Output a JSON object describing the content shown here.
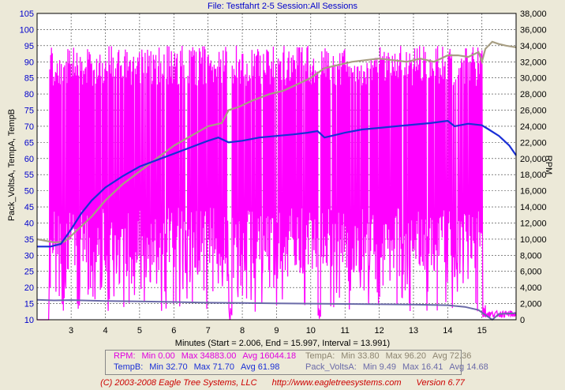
{
  "header": {
    "title": "File: Testfahrt 2-5   Session:All Sessions"
  },
  "colors": {
    "rpm": "#ff00ff",
    "temp_a": "#a89f84",
    "temp_b": "#1a2fd6",
    "pack_volts": "#6a6aa8",
    "plot_bg": "#ffffff",
    "grid": "#3a3a3a"
  },
  "chart_data": {
    "type": "line",
    "xlabel": "Minutes (Start = 2.006, End = 15.997, Interval = 13.991)",
    "ylabel": "Pack_VoltsA, TempA, TempB",
    "y2label": "RPM",
    "xlim": [
      2.006,
      15.997
    ],
    "ylim": [
      10,
      105
    ],
    "y2lim": [
      0,
      38000
    ],
    "x_ticks": [
      "3",
      "4",
      "5",
      "6",
      "7",
      "8",
      "9",
      "10",
      "11",
      "12",
      "13",
      "14",
      "15"
    ],
    "y_ticks": [
      "10",
      "15",
      "20",
      "25",
      "30",
      "35",
      "40",
      "45",
      "50",
      "55",
      "60",
      "65",
      "70",
      "75",
      "80",
      "85",
      "90",
      "95",
      "100",
      "105"
    ],
    "y2_ticks": [
      "0",
      "2,000",
      "4,000",
      "6,000",
      "8,000",
      "10,000",
      "12,000",
      "14,000",
      "16,000",
      "18,000",
      "20,000",
      "22,000",
      "24,000",
      "26,000",
      "28,000",
      "30,000",
      "32,000",
      "34,000",
      "36,000",
      "38,000"
    ],
    "grid": true,
    "series": [
      {
        "name": "TempA",
        "axis": "left",
        "x": [
          2.0,
          2.5,
          2.8,
          3.0,
          3.3,
          3.6,
          4.0,
          4.5,
          5.0,
          5.5,
          6.0,
          6.5,
          7.0,
          7.4,
          7.6,
          7.9,
          8.3,
          8.8,
          9.2,
          9.6,
          10.0,
          10.4,
          10.8,
          11.2,
          11.6,
          12.0,
          12.4,
          12.8,
          13.2,
          13.6,
          14.0,
          14.3,
          14.6,
          14.9,
          15.0,
          15.1,
          15.3,
          15.5,
          15.7,
          15.997
        ],
        "y": [
          35.0,
          34.0,
          34.2,
          36.0,
          39.0,
          42.0,
          47.0,
          52.0,
          56.0,
          60.0,
          64.0,
          67.0,
          70.0,
          71.0,
          75.0,
          76.0,
          78.0,
          80.0,
          81.0,
          83.0,
          85.0,
          88.0,
          89.0,
          90.0,
          90.5,
          91.0,
          90.5,
          90.0,
          91.0,
          90.0,
          92.0,
          92.0,
          91.5,
          93.0,
          90.0,
          94.0,
          96.2,
          95.5,
          95.0,
          94.5
        ]
      },
      {
        "name": "TempB",
        "axis": "left",
        "x": [
          2.0,
          2.4,
          2.7,
          3.0,
          3.3,
          3.6,
          4.0,
          4.5,
          5.0,
          5.5,
          6.0,
          6.5,
          7.0,
          7.3,
          7.6,
          8.0,
          8.5,
          9.0,
          9.5,
          9.9,
          10.2,
          10.4,
          10.6,
          11.0,
          11.5,
          12.0,
          12.5,
          13.0,
          13.5,
          14.0,
          14.2,
          14.6,
          15.0,
          15.2,
          15.5,
          15.8,
          15.997
        ],
        "y": [
          32.7,
          32.7,
          33.5,
          38.0,
          43.0,
          47.0,
          51.0,
          54.5,
          57.5,
          59.5,
          61.5,
          63.5,
          65.5,
          66.5,
          65.0,
          65.5,
          66.5,
          67.0,
          67.5,
          68.0,
          68.5,
          66.5,
          67.0,
          68.0,
          69.0,
          69.5,
          70.0,
          70.5,
          71.0,
          71.7,
          70.0,
          70.8,
          70.3,
          69.0,
          67.0,
          64.0,
          61.0
        ]
      },
      {
        "name": "Pack_VoltsA",
        "axis": "left",
        "x": [
          2.0,
          2.5,
          3.0,
          4.0,
          5.0,
          6.0,
          7.0,
          8.0,
          9.0,
          10.0,
          11.0,
          12.0,
          13.0,
          14.0,
          14.5,
          14.9,
          15.1,
          15.3,
          15.5,
          15.997
        ],
        "y": [
          16.2,
          16.0,
          16.1,
          15.8,
          15.7,
          15.5,
          15.3,
          15.2,
          15.1,
          15.0,
          14.9,
          14.8,
          14.7,
          14.5,
          14.0,
          13.0,
          11.5,
          10.0,
          11.8,
          12.0
        ]
      },
      {
        "name": "RPM",
        "axis": "right",
        "x": [],
        "y": []
      }
    ]
  },
  "legend": {
    "rpm": {
      "label": "RPM:",
      "min": "Min 0.00",
      "max": "Max 34883.00",
      "avg": "Avg 16044.18"
    },
    "temp_a": {
      "label": "TempA:",
      "min": "Min 33.80",
      "max": "Max 96.20",
      "avg": "Avg 72.36"
    },
    "temp_b": {
      "label": "TempB:",
      "min": "Min 32.70",
      "max": "Max 71.70",
      "avg": "Avg 61.98"
    },
    "pack_volts": {
      "label": "Pack_VoltsA:",
      "min": "Min 9.49",
      "max": "Max 16.41",
      "avg": "Avg 14.68"
    }
  },
  "footer": {
    "copyright": "(C) 2003-2008 Eagle Tree Systems, LLC",
    "url": "http://www.eagletreesystems.com",
    "version": "Version 6.77"
  }
}
